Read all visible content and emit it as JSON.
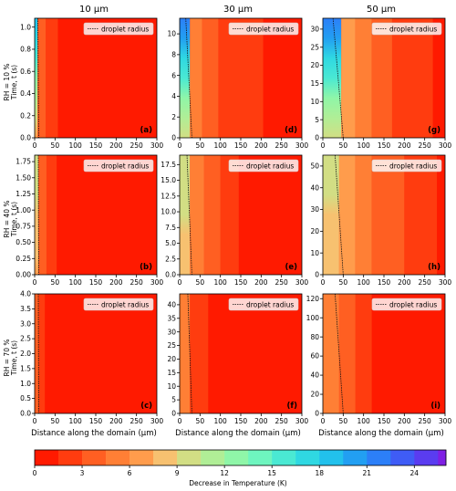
{
  "chart_data": {
    "type": "heatmap",
    "description_kind": "filled contour grid",
    "column_titles": [
      "10 μm",
      "30 μm",
      "50 μm"
    ],
    "row_labels": [
      "RH = 10 %",
      "RH = 40 %",
      "RH = 70 %"
    ],
    "ylabel": "Time, t (s)",
    "xlabel": "Distance along the domain (μm)",
    "legend_label": "droplet radius",
    "x_ticks": [
      0,
      50,
      100,
      150,
      200,
      250,
      300
    ],
    "xlim": [
      0,
      300
    ],
    "colorbar": {
      "label": "Decrease in Temperature (K)",
      "ticks": [
        0,
        3,
        6,
        9,
        12,
        15,
        18,
        21,
        24
      ],
      "range": [
        0,
        26
      ],
      "levels": [
        {
          "v": 0,
          "color": "#ff1a00"
        },
        {
          "v": 1.5,
          "color": "#ff3c0f"
        },
        {
          "v": 3,
          "color": "#ff5f22"
        },
        {
          "v": 4.5,
          "color": "#ff7f35"
        },
        {
          "v": 6,
          "color": "#ff9c4c"
        },
        {
          "v": 7.5,
          "color": "#f7c170"
        },
        {
          "v": 9,
          "color": "#d2de84"
        },
        {
          "v": 10.5,
          "color": "#b0ee96"
        },
        {
          "v": 12,
          "color": "#8ff6a8"
        },
        {
          "v": 13.5,
          "color": "#6ef5bf"
        },
        {
          "v": 15,
          "color": "#4ae9d3"
        },
        {
          "v": 16.5,
          "color": "#2fd8e2"
        },
        {
          "v": 18,
          "color": "#22c1ec"
        },
        {
          "v": 19.5,
          "color": "#229ff2"
        },
        {
          "v": 21,
          "color": "#2c7ff8"
        },
        {
          "v": 22.5,
          "color": "#3f5cf6"
        },
        {
          "v": 24,
          "color": "#5a3cf0"
        },
        {
          "v": 25.5,
          "color": "#7f1fe4"
        }
      ]
    },
    "panels": [
      {
        "label": "(a)",
        "row": 0,
        "col": 0,
        "yticks": [
          0.0,
          0.2,
          0.4,
          0.6,
          0.8,
          1.0
        ],
        "ylim": [
          0,
          1.08
        ],
        "radius_line": [
          [
            8,
            1.08
          ],
          [
            10,
            0
          ]
        ],
        "bands": [
          {
            "x": 0,
            "w": 7,
            "t0": 1.08,
            "t1": 0,
            "v0": 19,
            "v1": 7
          },
          {
            "x": 7,
            "w": 20,
            "v": 4
          },
          {
            "x": 27,
            "w": 30,
            "v": 1.5
          }
        ]
      },
      {
        "label": "(d)",
        "row": 0,
        "col": 1,
        "yticks": [
          0,
          2,
          4,
          6,
          8,
          10
        ],
        "ylim": [
          0,
          11.5
        ],
        "radius_line": [
          [
            15,
            11.5
          ],
          [
            30,
            0
          ]
        ],
        "bands": [
          {
            "x": 0,
            "w": 25,
            "t0": 11.5,
            "t1": 0,
            "v0": 22,
            "v1": 9
          },
          {
            "x": 25,
            "w": 30,
            "v": 4.5
          },
          {
            "x": 55,
            "w": 40,
            "v": 3
          },
          {
            "x": 95,
            "w": 110,
            "v": 1.5
          }
        ]
      },
      {
        "label": "(g)",
        "row": 0,
        "col": 2,
        "yticks": [
          0,
          5,
          10,
          15,
          20,
          25,
          30
        ],
        "ylim": [
          0,
          33
        ],
        "radius_line": [
          [
            25,
            33
          ],
          [
            50,
            0
          ]
        ],
        "bands": [
          {
            "x": 0,
            "w": 45,
            "t0": 33,
            "t1": 0,
            "v0": 22,
            "v1": 9
          },
          {
            "x": 45,
            "w": 35,
            "v": 6
          },
          {
            "x": 80,
            "w": 40,
            "v": 4.5
          },
          {
            "x": 120,
            "w": 50,
            "v": 3
          },
          {
            "x": 170,
            "w": 100,
            "v": 1.5
          }
        ]
      },
      {
        "label": "(b)",
        "row": 1,
        "col": 0,
        "yticks": [
          0.0,
          0.25,
          0.5,
          0.75,
          1.0,
          1.25,
          1.5,
          1.75
        ],
        "ylim": [
          0,
          1.85
        ],
        "radius_line": [
          [
            9,
            1.85
          ],
          [
            10,
            0
          ]
        ],
        "bands": [
          {
            "x": 0,
            "w": 9,
            "t0": 1.85,
            "t1": 0,
            "v0": 10,
            "v1": 7
          },
          {
            "x": 9,
            "w": 20,
            "v": 4
          },
          {
            "x": 29,
            "w": 25,
            "v": 1.5
          }
        ]
      },
      {
        "label": "(e)",
        "row": 1,
        "col": 1,
        "yticks": [
          0.0,
          2.5,
          5.0,
          7.5,
          10.0,
          12.5,
          15.0,
          17.5
        ],
        "ylim": [
          0,
          19
        ],
        "radius_line": [
          [
            18,
            19
          ],
          [
            30,
            0
          ]
        ],
        "bands": [
          {
            "x": 0,
            "w": 25,
            "t0": 19,
            "t1": 0,
            "v0": 10,
            "v1": 8
          },
          {
            "x": 25,
            "w": 35,
            "v": 4.5
          },
          {
            "x": 60,
            "w": 40,
            "v": 3
          },
          {
            "x": 100,
            "w": 45,
            "v": 1.5
          }
        ]
      },
      {
        "label": "(h)",
        "row": 1,
        "col": 2,
        "yticks": [
          0,
          10,
          20,
          30,
          40,
          50
        ],
        "ylim": [
          0,
          55
        ],
        "radius_line": [
          [
            30,
            55
          ],
          [
            50,
            0
          ]
        ],
        "bands": [
          {
            "x": 0,
            "w": 40,
            "t0": 55,
            "t1": 0,
            "v0": 10,
            "v1": 7.5
          },
          {
            "x": 40,
            "w": 40,
            "v": 6
          },
          {
            "x": 80,
            "w": 40,
            "v": 4.5
          },
          {
            "x": 120,
            "w": 80,
            "v": 3
          },
          {
            "x": 200,
            "w": 80,
            "v": 1.5
          }
        ]
      },
      {
        "label": "(c)",
        "row": 2,
        "col": 0,
        "yticks": [
          0.0,
          0.5,
          1.0,
          1.5,
          2.0,
          2.5,
          3.0,
          3.5,
          4.0
        ],
        "ylim": [
          0,
          4.0
        ],
        "radius_line": [
          [
            9,
            4.0
          ],
          [
            10,
            0
          ]
        ],
        "bands": [
          {
            "x": 0,
            "w": 10,
            "v": 3
          },
          {
            "x": 10,
            "w": 15,
            "v": 1.5
          }
        ]
      },
      {
        "label": "(f)",
        "row": 2,
        "col": 1,
        "yticks": [
          0,
          5,
          10,
          15,
          20,
          25,
          30,
          35,
          40
        ],
        "ylim": [
          0,
          44
        ],
        "radius_line": [
          [
            20,
            44
          ],
          [
            30,
            0
          ]
        ],
        "bands": [
          {
            "x": 0,
            "w": 25,
            "v": 4.5
          },
          {
            "x": 25,
            "w": 45,
            "v": 1.5
          }
        ]
      },
      {
        "label": "(i)",
        "row": 2,
        "col": 2,
        "yticks": [
          0,
          20,
          40,
          60,
          80,
          100,
          120
        ],
        "ylim": [
          0,
          125
        ],
        "radius_line": [
          [
            30,
            125
          ],
          [
            50,
            0
          ]
        ],
        "bands": [
          {
            "x": 0,
            "w": 40,
            "v": 4.5
          },
          {
            "x": 40,
            "w": 40,
            "v": 3
          },
          {
            "x": 80,
            "w": 40,
            "v": 1.5
          }
        ]
      }
    ]
  }
}
